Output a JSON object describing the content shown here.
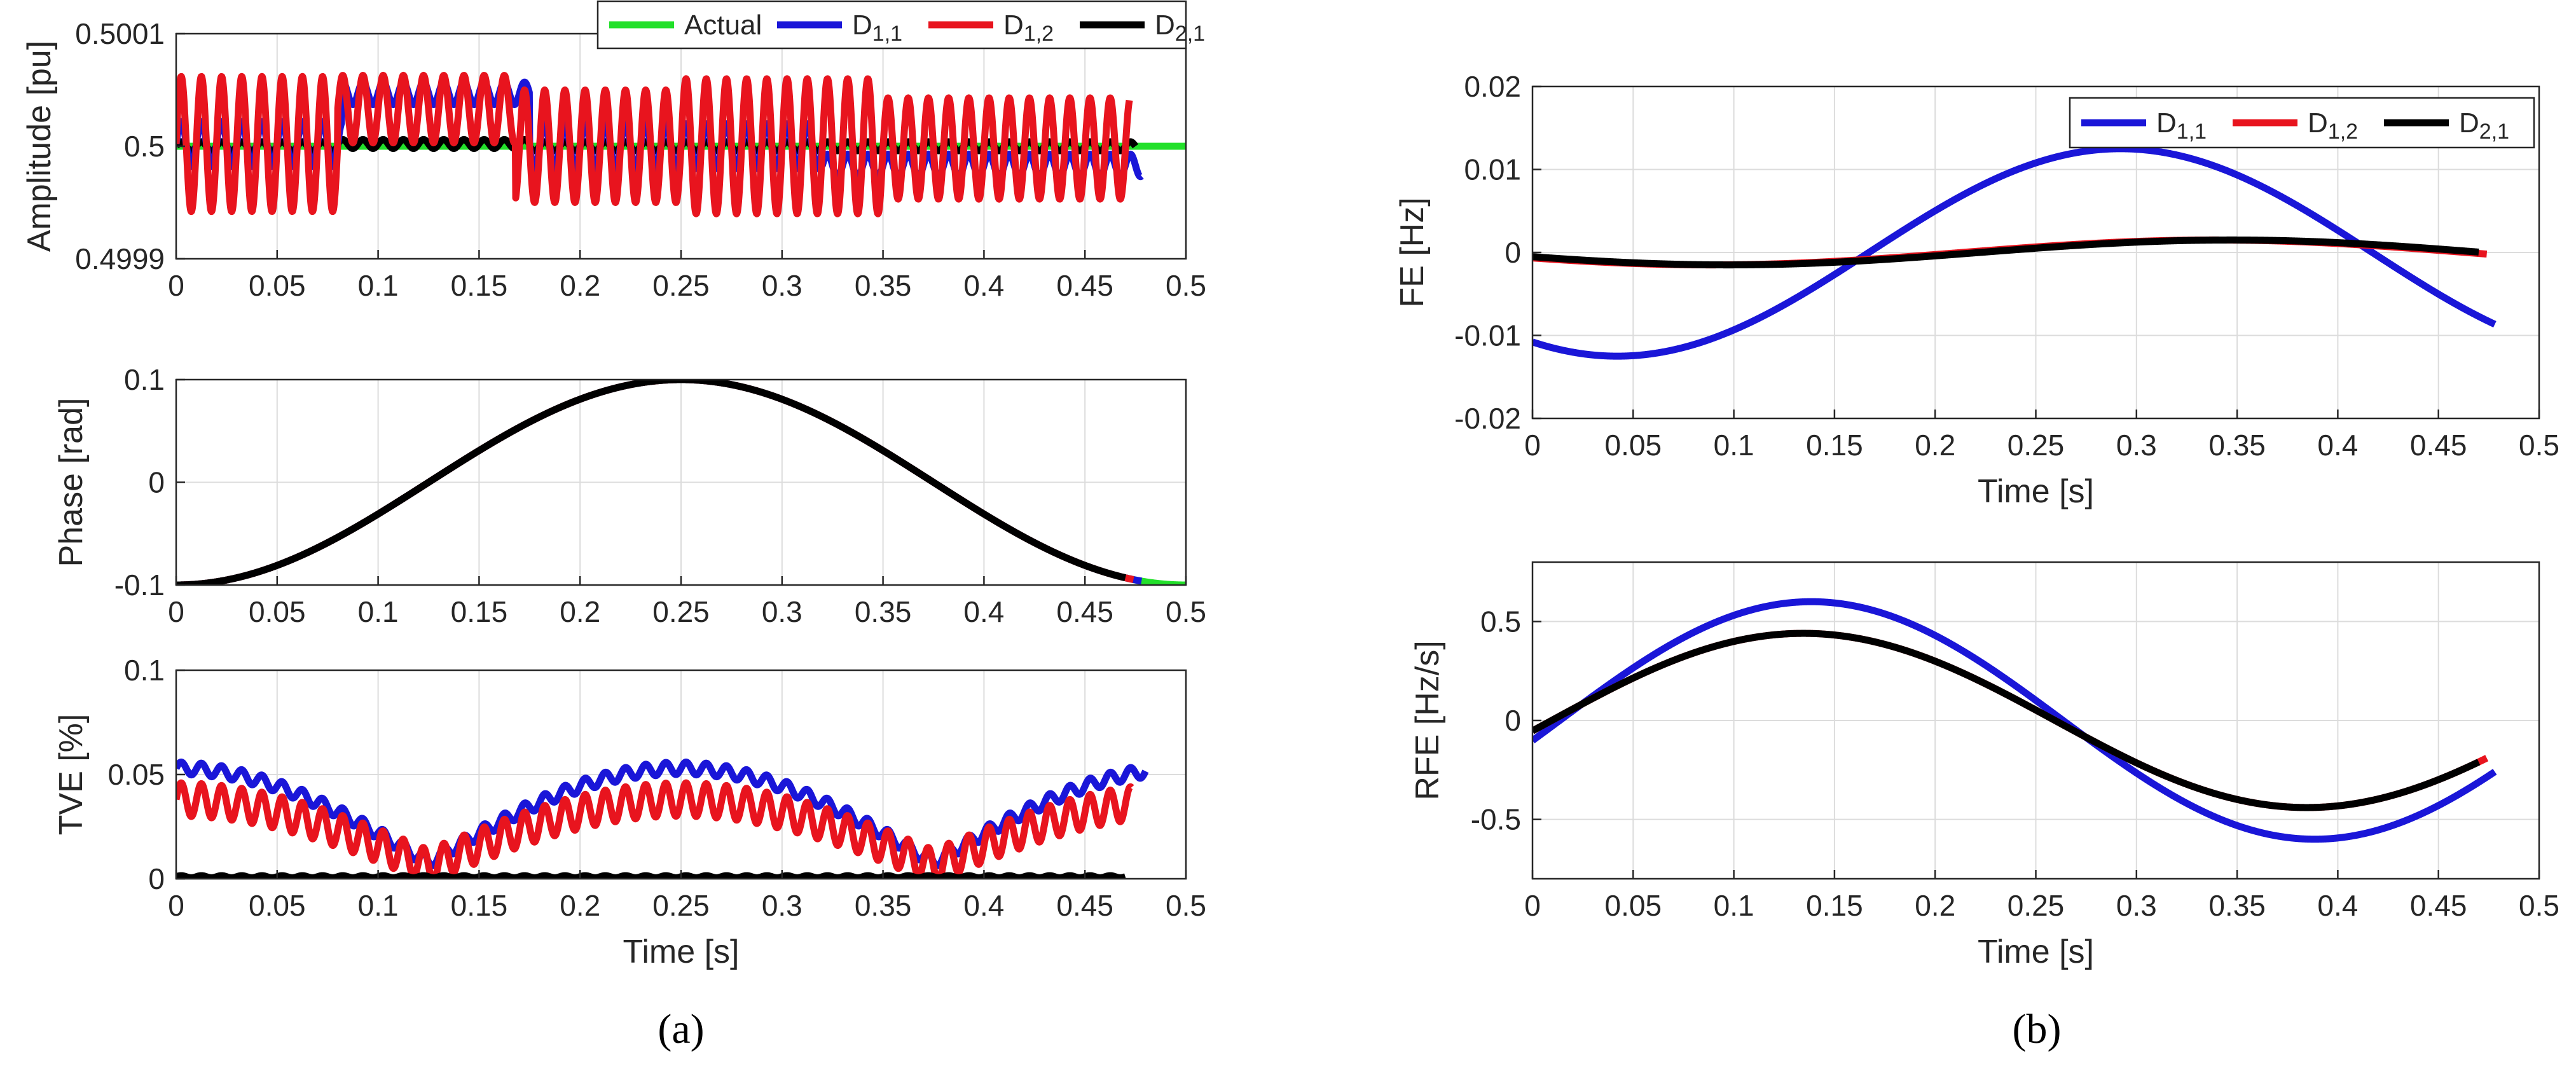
{
  "colors": {
    "Actual": "#22e02a",
    "D11": "#1a16d8",
    "D12": "#e8141e",
    "D21": "#000000",
    "grid": "#dcdcdc",
    "axis": "#262626"
  },
  "panel_a_caption": "(a)",
  "panel_b_caption": "(b)",
  "chart_data": [
    {
      "id": "amp",
      "type": "line",
      "title": "",
      "xlabel": "",
      "ylabel": "Amplitude [pu]",
      "xlim": [
        0,
        0.5
      ],
      "ylim": [
        0.4999,
        0.5001
      ],
      "xticks": [
        "0",
        "0.05",
        "0.1",
        "0.15",
        "0.2",
        "0.25",
        "0.3",
        "0.35",
        "0.4",
        "0.45",
        "0.5"
      ],
      "yticks": [
        "0.4999",
        "0.5",
        "0.5001"
      ],
      "grid": true,
      "legend": [
        {
          "key": "Actual",
          "label": "Actual",
          "sub": ""
        },
        {
          "key": "D11",
          "label": "D",
          "sub": "1,1"
        },
        {
          "key": "D12",
          "label": "D",
          "sub": "1,2"
        },
        {
          "key": "D21",
          "label": "D",
          "sub": "2,1"
        }
      ],
      "legend_position": "top-right (outside)",
      "series": [
        {
          "name": "Actual",
          "color_key": "Actual",
          "form": "const",
          "value": 0.5,
          "x_range": [
            0,
            0.5
          ]
        },
        {
          "name": "D2,1",
          "color_key": "D21",
          "form": "osc",
          "x_range": [
            0,
            0.475
          ],
          "segments": [
            [
              0,
              0.08,
              0.5,
              4e-06
            ],
            [
              0.08,
              0.175,
              0.500002,
              4e-06
            ],
            [
              0.175,
              0.475,
              0.5,
              4e-06
            ]
          ],
          "cycles_per_s": 100
        },
        {
          "name": "D1,1",
          "color_key": "D11",
          "form": "osc",
          "x_range": [
            0,
            0.478
          ],
          "segments": [
            [
              0,
              0.082,
              0.500002,
              2e-05
            ],
            [
              0.082,
              0.175,
              0.500047,
              1e-05
            ],
            [
              0.175,
              0.32,
              0.5,
              2e-05
            ],
            [
              0.32,
              0.478,
              0.499983,
              1e-05
            ]
          ],
          "cycles_per_s": 100
        },
        {
          "name": "D1,2",
          "color_key": "D12",
          "form": "osc",
          "x_range": [
            0,
            0.472
          ],
          "segments": [
            [
              0,
              0.08,
              0.500002,
              6e-05
            ],
            [
              0.08,
              0.168,
              0.500033,
              3e-05
            ],
            [
              0.168,
              0.25,
              0.5,
              5e-05
            ],
            [
              0.25,
              0.35,
              0.5,
              6e-05
            ],
            [
              0.35,
              0.472,
              0.499998,
              4.5e-05
            ]
          ],
          "cycles_per_s": 100
        }
      ]
    },
    {
      "id": "phase",
      "type": "line",
      "title": "",
      "xlabel": "",
      "ylabel": "Phase [rad]",
      "xlim": [
        0,
        0.5
      ],
      "ylim": [
        -0.1,
        0.1
      ],
      "xticks": [
        "0",
        "0.05",
        "0.1",
        "0.15",
        "0.2",
        "0.25",
        "0.3",
        "0.35",
        "0.4",
        "0.45",
        "0.5"
      ],
      "yticks": [
        "-0.1",
        "0",
        "0.1"
      ],
      "grid": true,
      "series": [
        {
          "name": "Actual",
          "color_key": "Actual",
          "form": "sin",
          "A": 0.1,
          "f": 2,
          "phi": -1.5708,
          "c": 0,
          "x_range": [
            0,
            0.5
          ]
        },
        {
          "name": "D1,1",
          "color_key": "D11",
          "form": "sin",
          "A": 0.1,
          "f": 2,
          "phi": -1.5708,
          "c": 0,
          "x_range": [
            0,
            0.478
          ]
        },
        {
          "name": "D1,2",
          "color_key": "D12",
          "form": "sin",
          "A": 0.1,
          "f": 2,
          "phi": -1.5708,
          "c": 0,
          "x_range": [
            0,
            0.474
          ]
        },
        {
          "name": "D2,1",
          "color_key": "D21",
          "form": "sin",
          "A": 0.1,
          "f": 2,
          "phi": -1.5708,
          "c": 0,
          "x_range": [
            0,
            0.47
          ]
        }
      ]
    },
    {
      "id": "tve",
      "type": "line",
      "title": "",
      "xlabel": "Time [s]",
      "ylabel": "TVE [%]",
      "xlim": [
        0,
        0.5
      ],
      "ylim": [
        0,
        0.1
      ],
      "xticks": [
        "0",
        "0.05",
        "0.1",
        "0.15",
        "0.2",
        "0.25",
        "0.3",
        "0.35",
        "0.4",
        "0.45",
        "0.5"
      ],
      "yticks": [
        "0",
        "0.05",
        "0.1"
      ],
      "grid": true,
      "series": [
        {
          "name": "D1,1",
          "color_key": "D11",
          "form": "abscos",
          "A": 0.045,
          "f": 2,
          "c": 0.008,
          "osc": 0.003,
          "cycles_per_s": 100,
          "x_range": [
            0,
            0.48
          ]
        },
        {
          "name": "D1,2",
          "color_key": "D12",
          "form": "abscos",
          "A": 0.032,
          "f": 2,
          "c": 0.006,
          "osc": 0.008,
          "cycles_per_s": 100,
          "x_range": [
            0,
            0.473
          ]
        },
        {
          "name": "D2,1",
          "color_key": "D21",
          "form": "const_osc",
          "value": 0.001,
          "osc": 0.0005,
          "cycles_per_s": 100,
          "x_range": [
            0,
            0.47
          ]
        }
      ]
    },
    {
      "id": "fe",
      "type": "line",
      "title": "",
      "xlabel": "Time [s]",
      "ylabel": "FE [Hz]",
      "xlim": [
        0,
        0.5
      ],
      "ylim": [
        -0.02,
        0.02
      ],
      "xticks": [
        "0",
        "0.05",
        "0.1",
        "0.15",
        "0.2",
        "0.25",
        "0.3",
        "0.35",
        "0.4",
        "0.45",
        "0.5"
      ],
      "yticks": [
        "-0.02",
        "-0.01",
        "0",
        "0.01",
        "0.02"
      ],
      "grid": true,
      "legend": [
        {
          "key": "D11",
          "label": "D",
          "sub": "1,1"
        },
        {
          "key": "D12",
          "label": "D",
          "sub": "1,2"
        },
        {
          "key": "D21",
          "label": "D",
          "sub": "2,1"
        }
      ],
      "legend_position": "top-right",
      "series": [
        {
          "name": "D1,1",
          "color_key": "D11",
          "form": "sin",
          "A": 0.0125,
          "f": 2,
          "phi": -2.1,
          "c": 0,
          "x_range": [
            0,
            0.478
          ]
        },
        {
          "name": "D1,2",
          "color_key": "D12",
          "form": "sin",
          "A": 0.0015,
          "f": 2,
          "phi": 3.6,
          "c": 0,
          "x_range": [
            0,
            0.474
          ]
        },
        {
          "name": "D2,1",
          "color_key": "D21",
          "form": "sin",
          "A": 0.0015,
          "f": 2,
          "phi": 3.49,
          "c": 0,
          "x_range": [
            0,
            0.47
          ]
        }
      ]
    },
    {
      "id": "rfe",
      "type": "line",
      "title": "",
      "xlabel": "Time [s]",
      "ylabel": "RFE [Hz/s]",
      "xlim": [
        0,
        0.5
      ],
      "ylim": [
        -0.8,
        0.8
      ],
      "xticks": [
        "0",
        "0.05",
        "0.1",
        "0.15",
        "0.2",
        "0.25",
        "0.3",
        "0.35",
        "0.4",
        "0.45",
        "0.5"
      ],
      "yticks": [
        "-0.5",
        "0",
        "0.5"
      ],
      "ytick_values": [
        -0.5,
        0,
        0.5
      ],
      "grid": true,
      "series": [
        {
          "name": "D1,1",
          "color_key": "D11",
          "form": "sin",
          "A": 0.6,
          "f": 2,
          "phi": -0.17,
          "c": 0,
          "x_range": [
            0,
            0.478
          ]
        },
        {
          "name": "D1,2",
          "color_key": "D12",
          "form": "sin",
          "A": 0.44,
          "f": 2,
          "phi": -0.12,
          "c": 0,
          "x_range": [
            0,
            0.474
          ]
        },
        {
          "name": "D2,1",
          "color_key": "D21",
          "form": "sin",
          "A": 0.44,
          "f": 2,
          "phi": -0.12,
          "c": 0,
          "x_range": [
            0,
            0.47
          ]
        }
      ]
    }
  ]
}
